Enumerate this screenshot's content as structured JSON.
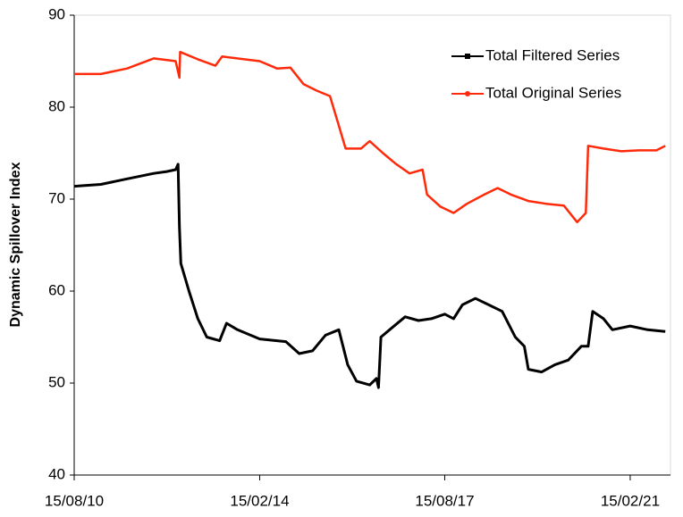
{
  "chart_data": {
    "type": "line",
    "y_label": "Dynamic Spillover Index",
    "xlim": [
      "15/08/10",
      "20/11/21"
    ],
    "xticks": [
      "15/08/10",
      "15/02/14",
      "15/08/17",
      "15/02/21"
    ],
    "ylim": [
      40,
      90
    ],
    "yticks": [
      40,
      50,
      60,
      70,
      80,
      90
    ],
    "grid": false,
    "legend": "upper right",
    "series": [
      {
        "name": "Total Filtered Series",
        "color": "#000000",
        "x": [
          "15/08/10",
          "15/02/11",
          "15/08/11",
          "15/02/12",
          "15/05/12",
          "15/07/12",
          "01/08/12",
          "10/08/12",
          "20/08/12",
          "15/10/12",
          "15/12/12",
          "15/02/13",
          "15/05/13",
          "01/07/13",
          "15/09/13",
          "15/02/14",
          "15/08/14",
          "15/11/14",
          "15/02/15",
          "15/05/15",
          "15/08/15",
          "15/10/15",
          "15/12/15",
          "15/03/16",
          "01/05/16",
          "15/05/16",
          "01/06/16",
          "15/08/16",
          "15/11/16",
          "15/02/17",
          "15/05/17",
          "15/08/17",
          "15/10/17",
          "15/12/17",
          "15/03/18",
          "15/06/18",
          "15/09/18",
          "15/12/18",
          "15/02/19",
          "15/03/19",
          "15/06/19",
          "15/09/19",
          "15/12/19",
          "15/03/20",
          "01/05/20",
          "01/06/20",
          "15/08/20",
          "15/10/20",
          "15/02/21",
          "15/06/21",
          "15/10/21"
        ],
        "values": [
          71.4,
          71.6,
          72.2,
          72.8,
          73.0,
          73.2,
          73.8,
          67,
          63,
          60,
          57,
          55,
          54.6,
          56.5,
          55.8,
          54.8,
          54.5,
          53.2,
          53.5,
          55.2,
          55.8,
          52,
          50.2,
          49.8,
          50.5,
          49.5,
          55,
          56,
          57.2,
          56.8,
          57,
          57.5,
          57,
          58.5,
          59.2,
          58.5,
          57.8,
          55,
          54,
          51.5,
          51.2,
          52,
          52.5,
          54,
          54,
          57.8,
          57,
          55.8,
          56.2,
          55.8,
          55.6
        ]
      },
      {
        "name": "Total Original Series",
        "color": "#ff2a0a",
        "x": [
          "15/08/10",
          "15/02/11",
          "15/08/11",
          "15/02/12",
          "15/07/12",
          "10/08/12",
          "15/08/12",
          "15/12/12",
          "15/04/13",
          "01/06/13",
          "15/02/14",
          "15/06/14",
          "15/09/14",
          "15/12/14",
          "15/03/15",
          "15/06/15",
          "15/08/15",
          "01/10/15",
          "15/01/16",
          "15/03/16",
          "15/06/16",
          "15/09/16",
          "15/12/16",
          "15/03/17",
          "15/04/17",
          "15/07/17",
          "15/10/17",
          "15/01/18",
          "15/05/18",
          "15/08/18",
          "15/11/18",
          "15/03/19",
          "15/07/19",
          "15/11/19",
          "15/02/20",
          "15/04/20",
          "01/05/20",
          "15/08/20",
          "15/12/20",
          "15/04/21",
          "15/08/21",
          "15/10/21"
        ],
        "values": [
          83.6,
          83.6,
          84.2,
          85.3,
          85,
          83.2,
          86,
          85.2,
          84.5,
          85.5,
          85,
          84.2,
          84.3,
          82.5,
          81.8,
          81.2,
          78,
          75.5,
          75.5,
          76.3,
          75,
          73.8,
          72.8,
          73.2,
          70.5,
          69.2,
          68.5,
          69.5,
          70.5,
          71.2,
          70.5,
          69.8,
          69.5,
          69.3,
          67.5,
          68.5,
          75.8,
          75.5,
          75.2,
          75.3,
          75.3,
          75.8
        ]
      }
    ]
  }
}
